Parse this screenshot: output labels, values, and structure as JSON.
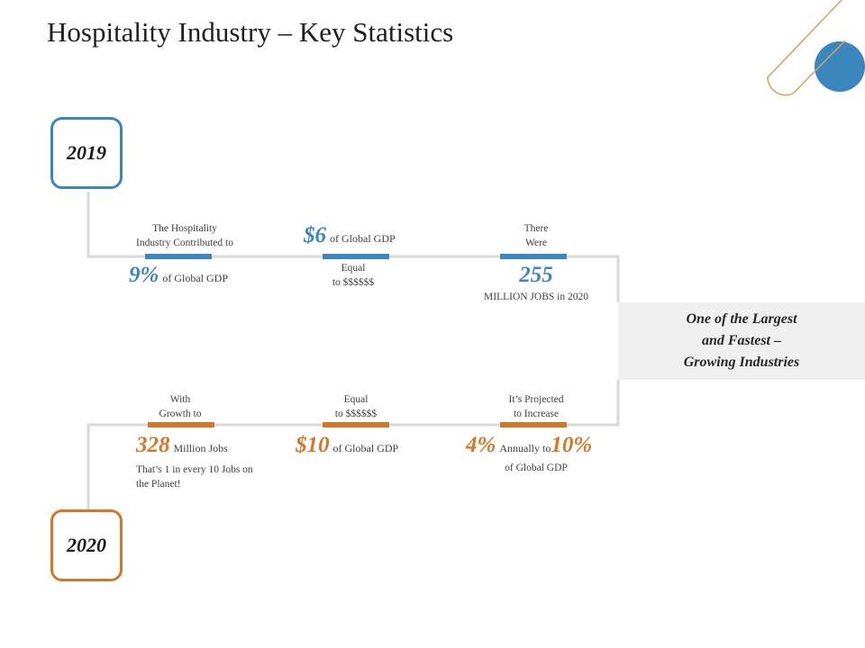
{
  "title": "Hospitality Industry – Key Statistics",
  "colors": {
    "blue": "#3a86bd",
    "orange": "#d4772a",
    "callout_bg": "#f0f0f0"
  },
  "years": {
    "y2019": "2019",
    "y2020": "2020"
  },
  "row2019": [
    {
      "above": [
        "The Hospitality",
        "Industry Contributed to"
      ],
      "big": "9%",
      "big_suffix": "of Global GDP"
    },
    {
      "big": "$6",
      "big_suffix": "of Global GDP",
      "below": [
        "Equal",
        "to $$$$$$"
      ]
    },
    {
      "above": [
        "There",
        "Were"
      ],
      "big": "255",
      "below": [
        "MILLION JOBS in 2020"
      ]
    }
  ],
  "row2020": [
    {
      "above": [
        "With",
        "Growth to"
      ],
      "big": "328",
      "big_suffix": "Million Jobs",
      "below": [
        "That’s 1 in every 10 Jobs on",
        "the Planet!"
      ]
    },
    {
      "above": [
        "Equal",
        "to $$$$$$"
      ],
      "big": "$10",
      "big_suffix": "of Global GDP"
    },
    {
      "above": [
        "It’s Projected",
        "to Increase"
      ],
      "big": "4%",
      "big_mid": "Annually to",
      "big2": "10%",
      "below": [
        "of Global GDP"
      ]
    }
  ],
  "callout": [
    "One of the Largest",
    "and Fastest –",
    "Growing Industries"
  ]
}
